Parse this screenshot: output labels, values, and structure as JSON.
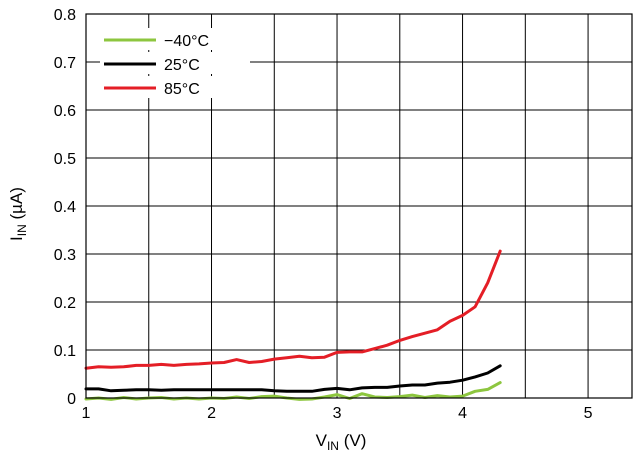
{
  "chart_data": {
    "type": "line",
    "xlabel": {
      "main": "V",
      "sub": "IN",
      "unit": " (V)"
    },
    "ylabel": {
      "main": "I",
      "sub": "IN",
      "unit": " (µA)"
    },
    "xlim": [
      1,
      5.35
    ],
    "ylim": [
      0,
      0.8
    ],
    "x_ticks": [
      1,
      2,
      3,
      4,
      5
    ],
    "y_ticks": [
      0,
      0.1,
      0.2,
      0.3,
      0.4,
      0.5,
      0.6,
      0.7,
      0.8
    ],
    "x_tick_labels": [
      "1",
      "2",
      "3",
      "4",
      "5"
    ],
    "y_tick_labels": [
      "0",
      "0.1",
      "0.2",
      "0.3",
      "0.4",
      "0.5",
      "0.6",
      "0.7",
      "0.8"
    ],
    "grid": true,
    "legend_position": "top-left",
    "series": [
      {
        "name": "−40°C",
        "color": "#8dc63f",
        "x": [
          1.0,
          1.1,
          1.2,
          1.3,
          1.4,
          1.5,
          1.6,
          1.7,
          1.8,
          1.9,
          2.0,
          2.1,
          2.2,
          2.3,
          2.4,
          2.5,
          2.6,
          2.7,
          2.8,
          2.9,
          3.0,
          3.1,
          3.2,
          3.3,
          3.4,
          3.5,
          3.6,
          3.7,
          3.8,
          3.9,
          4.0,
          4.1,
          4.2,
          4.3
        ],
        "values": [
          -0.002,
          0.0,
          -0.003,
          0.001,
          -0.002,
          0.0,
          0.001,
          -0.002,
          0.0,
          -0.002,
          0.0,
          -0.001,
          0.002,
          -0.001,
          0.003,
          0.004,
          0.0,
          -0.003,
          -0.002,
          0.002,
          0.007,
          -0.001,
          0.009,
          0.002,
          0.001,
          0.003,
          0.006,
          0.001,
          0.005,
          0.002,
          0.004,
          0.014,
          0.018,
          0.032
        ]
      },
      {
        "name": "25°C",
        "color": "#000000",
        "x": [
          1.0,
          1.1,
          1.2,
          1.3,
          1.4,
          1.5,
          1.6,
          1.7,
          1.8,
          1.9,
          2.0,
          2.1,
          2.2,
          2.3,
          2.4,
          2.5,
          2.6,
          2.7,
          2.8,
          2.9,
          3.0,
          3.1,
          3.2,
          3.3,
          3.4,
          3.5,
          3.6,
          3.7,
          3.8,
          3.9,
          4.0,
          4.1,
          4.2,
          4.3
        ],
        "values": [
          0.019,
          0.019,
          0.015,
          0.016,
          0.017,
          0.017,
          0.016,
          0.017,
          0.017,
          0.017,
          0.017,
          0.017,
          0.017,
          0.017,
          0.017,
          0.015,
          0.014,
          0.014,
          0.014,
          0.018,
          0.02,
          0.017,
          0.021,
          0.022,
          0.022,
          0.025,
          0.027,
          0.027,
          0.031,
          0.033,
          0.037,
          0.044,
          0.052,
          0.067
        ]
      },
      {
        "name": "85°C",
        "color": "#e41e26",
        "x": [
          1.0,
          1.1,
          1.2,
          1.3,
          1.4,
          1.5,
          1.6,
          1.7,
          1.8,
          1.9,
          2.0,
          2.1,
          2.2,
          2.3,
          2.4,
          2.5,
          2.6,
          2.7,
          2.8,
          2.9,
          3.0,
          3.1,
          3.2,
          3.3,
          3.4,
          3.5,
          3.6,
          3.7,
          3.8,
          3.9,
          4.0,
          4.1,
          4.2,
          4.3
        ],
        "values": [
          0.062,
          0.065,
          0.064,
          0.065,
          0.068,
          0.068,
          0.07,
          0.068,
          0.07,
          0.071,
          0.073,
          0.074,
          0.08,
          0.074,
          0.076,
          0.081,
          0.084,
          0.087,
          0.084,
          0.085,
          0.095,
          0.096,
          0.096,
          0.103,
          0.11,
          0.12,
          0.128,
          0.135,
          0.142,
          0.16,
          0.172,
          0.19,
          0.24,
          0.306
        ]
      }
    ]
  }
}
